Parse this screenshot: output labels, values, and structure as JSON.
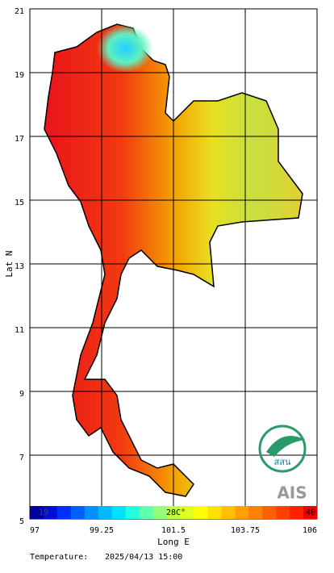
{
  "map": {
    "ylabel": "Lat N",
    "xlabel": "Long E",
    "ylim": [
      5,
      21
    ],
    "xlim": [
      97,
      106
    ],
    "lat_ticks": [
      5,
      7,
      9,
      11,
      13,
      15,
      17,
      19,
      21
    ],
    "long_ticks": [
      97,
      99.25,
      101.5,
      103.75,
      106
    ],
    "colorbar": {
      "min_label": "19",
      "mid_label": "28C°",
      "max_label": "40"
    },
    "footer": {
      "label": "Temperature:",
      "datetime": "2025/04/13 15:00"
    },
    "logos": [
      "สสน",
      "AIS"
    ]
  }
}
